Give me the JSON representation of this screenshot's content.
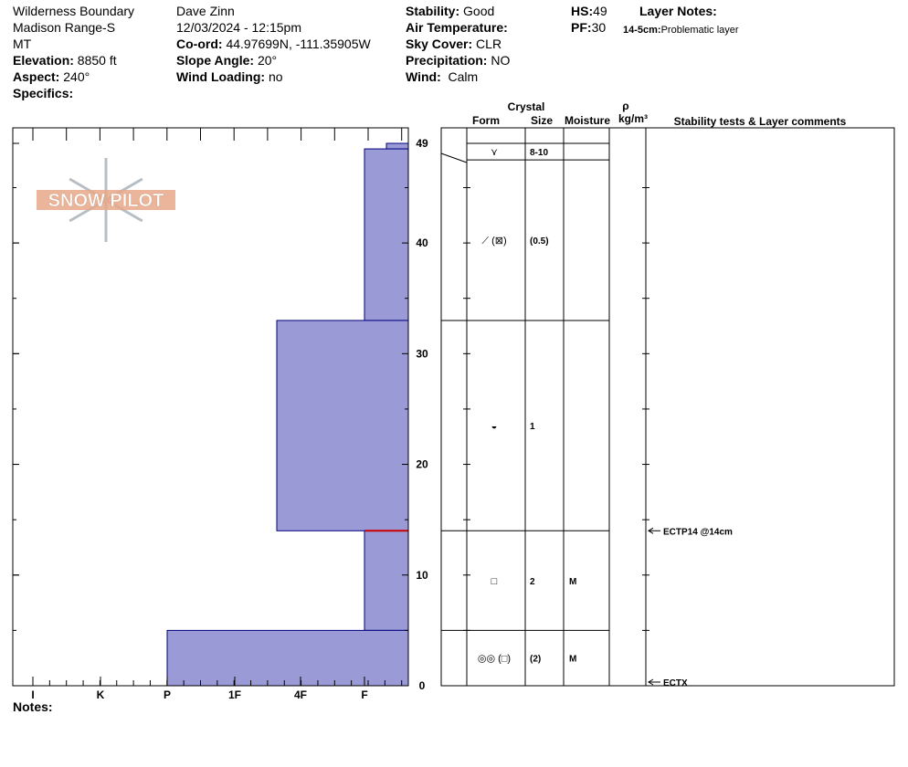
{
  "header": {
    "location": "Wilderness Boundary",
    "range": "Madison Range-S",
    "state": "MT",
    "elevation_label": "Elevation:",
    "elevation_value": "8850 ft",
    "aspect_label": "Aspect:",
    "aspect_value": "240°",
    "specifics_label": "Specifics:",
    "observer": "Dave Zinn",
    "datetime": "12/03/2024 - 12:15pm",
    "coord_label": "Co-ord:",
    "coord_value": "44.97699N, -111.35905W",
    "slope_label": "Slope Angle:",
    "slope_value": "20°",
    "wind_loading_label": "Wind Loading:",
    "wind_loading_value": "no",
    "stability_label": "Stability:",
    "stability_value": "Good",
    "air_temp_label": "Air Temperature:",
    "sky_label": "Sky Cover:",
    "sky_value": "CLR",
    "precip_label": "Precipitation:",
    "precip_value": "NO",
    "wind_label": "Wind:",
    "wind_value": "Calm",
    "hs_label": "HS:",
    "hs_value": "49",
    "pf_label": "PF:",
    "pf_value": "30",
    "layer_notes_label": "Layer Notes:",
    "layer_note_range": "14-5cm:",
    "layer_note_text": "Problematic layer"
  },
  "logo_text": "SNOW PILOT",
  "notes_label": "Notes:",
  "colors": {
    "fill": "#9a9ad6",
    "stroke": "#000080",
    "weak_layer": "#cc0000",
    "logo": "#e8a88a"
  },
  "chart_data": {
    "type": "snow_profile",
    "hardness_axis": {
      "ticks": [
        "I",
        "K",
        "P",
        "1F",
        "4F",
        "F"
      ]
    },
    "depth_axis": {
      "min": 0,
      "max": 49,
      "ticks": [
        0,
        10,
        20,
        30,
        40,
        49
      ],
      "unit": "cm"
    },
    "hardness_layers": [
      {
        "bottom": 48.5,
        "top": 49,
        "hardness": "F+"
      },
      {
        "bottom": 33,
        "top": 48.5,
        "hardness": "F"
      },
      {
        "bottom": 14,
        "top": 33,
        "hardness": "4F-"
      },
      {
        "bottom": 5,
        "top": 14,
        "hardness": "F"
      },
      {
        "bottom": 0,
        "top": 5,
        "hardness": "P"
      }
    ],
    "weak_layer_depth": 14,
    "table_headers": {
      "crystal": "Crystal",
      "form": "Form",
      "size": "Size",
      "moisture": "Moisture",
      "rho": "ρ",
      "density_unit": "kg/m³",
      "comments": "Stability tests & Layer comments"
    },
    "grain_layers": [
      {
        "top": 49,
        "bottom": 47.5,
        "form": "⋎",
        "size": "8-10",
        "moisture": ""
      },
      {
        "top": 47.5,
        "bottom": 33,
        "form": "⟋ (⊠)",
        "size": "(0.5)",
        "moisture": ""
      },
      {
        "top": 33,
        "bottom": 14,
        "form": "◒",
        "size": "1",
        "moisture": ""
      },
      {
        "top": 14,
        "bottom": 5,
        "form": "□",
        "size": "2",
        "moisture": "M"
      },
      {
        "top": 5,
        "bottom": 0,
        "form": "◎◎ (□)",
        "size": "(2)",
        "moisture": "M"
      }
    ],
    "stability_tests": [
      {
        "depth": 14,
        "label": "ECTP14 @14cm"
      },
      {
        "depth": 0,
        "label": "ECTX"
      }
    ]
  }
}
